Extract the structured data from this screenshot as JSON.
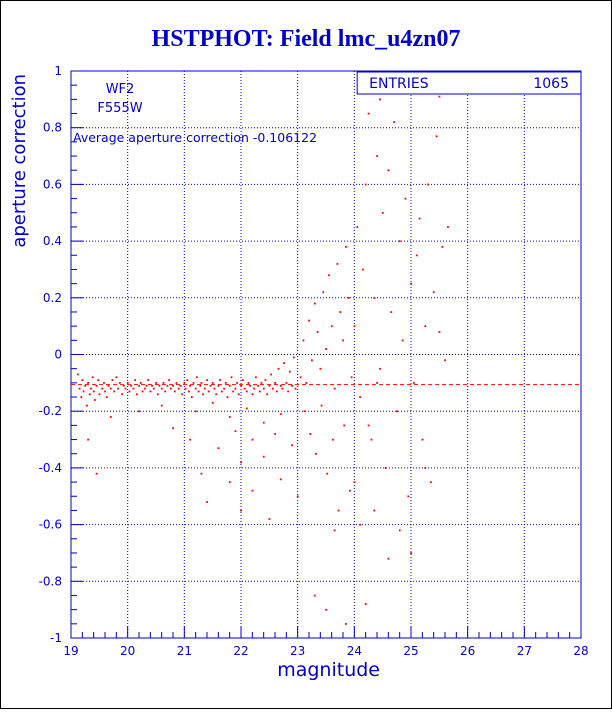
{
  "colors": {
    "axis": "#0000cc",
    "grid": "#0000cc",
    "points": "#ff0000",
    "title": "#0000cc",
    "background": "#ffffff"
  },
  "chart_data": {
    "type": "scatter",
    "title": "HSTPHOT: Field lmc_u4zn07",
    "xlabel": "magnitude",
    "ylabel": "aperture correction",
    "xlim": [
      19,
      28
    ],
    "ylim": [
      -1,
      1
    ],
    "grid": true,
    "x_ticks": [
      19,
      20,
      21,
      22,
      23,
      24,
      25,
      26,
      27,
      28
    ],
    "y_ticks": [
      -1,
      -0.8,
      -0.6,
      -0.4,
      -0.2,
      0,
      0.2,
      0.4,
      0.6,
      0.8,
      1
    ],
    "x_tick_labels": [
      "19",
      "20",
      "21",
      "22",
      "23",
      "24",
      "25",
      "26",
      "27",
      "28"
    ],
    "y_tick_labels": [
      "-1",
      "-0.8",
      "-0.6",
      "-0.4",
      "-0.2",
      "0",
      "0.2",
      "0.4",
      "0.6",
      "0.8",
      "1"
    ],
    "annotations": {
      "camera": "WF2",
      "filter": "F555W",
      "average_label": "Average aperture correction",
      "average_value": "-0.106122"
    },
    "average_line": -0.106122,
    "stats_box": {
      "label": "ENTRIES",
      "value": "1065"
    },
    "series": [
      {
        "values": [
          [
            19.12,
            -0.07
          ],
          [
            19.15,
            -0.12
          ],
          [
            19.18,
            -0.15
          ],
          [
            19.2,
            -0.09
          ],
          [
            19.22,
            -0.13
          ],
          [
            19.25,
            -0.11
          ],
          [
            19.28,
            -0.18
          ],
          [
            19.3,
            -0.1
          ],
          [
            19.33,
            -0.14
          ],
          [
            19.35,
            -0.12
          ],
          [
            19.38,
            -0.08
          ],
          [
            19.4,
            -0.13
          ],
          [
            19.42,
            -0.16
          ],
          [
            19.45,
            -0.11
          ],
          [
            19.48,
            -0.09
          ],
          [
            19.5,
            -0.14
          ],
          [
            19.55,
            -0.12
          ],
          [
            19.58,
            -0.1
          ],
          [
            19.6,
            -0.13
          ],
          [
            19.63,
            -0.15
          ],
          [
            19.66,
            -0.11
          ],
          [
            19.7,
            -0.12
          ],
          [
            19.73,
            -0.09
          ],
          [
            19.76,
            -0.13
          ],
          [
            19.8,
            -0.08
          ],
          [
            19.83,
            -0.12
          ],
          [
            19.86,
            -0.1
          ],
          [
            19.9,
            -0.14
          ],
          [
            19.93,
            -0.11
          ],
          [
            19.96,
            -0.12
          ],
          [
            20.0,
            -0.1
          ],
          [
            20.03,
            -0.13
          ],
          [
            20.06,
            -0.11
          ],
          [
            20.1,
            -0.12
          ],
          [
            20.13,
            -0.09
          ],
          [
            20.16,
            -0.14
          ],
          [
            20.2,
            -0.11
          ],
          [
            20.23,
            -0.1
          ],
          [
            20.26,
            -0.13
          ],
          [
            20.3,
            -0.12
          ],
          [
            20.33,
            -0.11
          ],
          [
            20.36,
            -0.09
          ],
          [
            20.4,
            -0.13
          ],
          [
            20.43,
            -0.11
          ],
          [
            20.46,
            -0.12
          ],
          [
            20.5,
            -0.1
          ],
          [
            20.53,
            -0.14
          ],
          [
            20.56,
            -0.11
          ],
          [
            20.6,
            -0.12
          ],
          [
            20.63,
            -0.1
          ],
          [
            20.66,
            -0.13
          ],
          [
            20.7,
            -0.11
          ],
          [
            20.73,
            -0.09
          ],
          [
            20.76,
            -0.12
          ],
          [
            20.8,
            -0.11
          ],
          [
            20.83,
            -0.13
          ],
          [
            20.86,
            -0.1
          ],
          [
            20.9,
            -0.12
          ],
          [
            20.93,
            -0.11
          ],
          [
            20.96,
            -0.14
          ],
          [
            21.0,
            -0.1
          ],
          [
            21.02,
            -0.12
          ],
          [
            21.05,
            -0.09
          ],
          [
            21.08,
            -0.13
          ],
          [
            21.1,
            -0.11
          ],
          [
            21.13,
            -0.15
          ],
          [
            21.16,
            -0.1
          ],
          [
            21.2,
            -0.12
          ],
          [
            21.22,
            -0.08
          ],
          [
            21.25,
            -0.13
          ],
          [
            21.28,
            -0.11
          ],
          [
            21.3,
            -0.1
          ],
          [
            21.33,
            -0.14
          ],
          [
            21.36,
            -0.12
          ],
          [
            21.4,
            -0.09
          ],
          [
            21.43,
            -0.13
          ],
          [
            21.46,
            -0.11
          ],
          [
            21.5,
            -0.1
          ],
          [
            21.53,
            -0.12
          ],
          [
            21.56,
            -0.14
          ],
          [
            21.6,
            -0.11
          ],
          [
            21.63,
            -0.09
          ],
          [
            21.66,
            -0.13
          ],
          [
            21.7,
            -0.12
          ],
          [
            21.73,
            -0.1
          ],
          [
            21.76,
            -0.15
          ],
          [
            21.8,
            -0.11
          ],
          [
            21.83,
            -0.08
          ],
          [
            21.86,
            -0.13
          ],
          [
            21.9,
            -0.12
          ],
          [
            21.93,
            -0.1
          ],
          [
            21.96,
            -0.14
          ],
          [
            22.0,
            -0.11
          ],
          [
            22.03,
            -0.09
          ],
          [
            22.06,
            -0.12
          ],
          [
            22.1,
            -0.13
          ],
          [
            22.13,
            -0.1
          ],
          [
            22.16,
            -0.11
          ],
          [
            22.2,
            -0.14
          ],
          [
            22.23,
            -0.12
          ],
          [
            22.26,
            -0.08
          ],
          [
            22.3,
            -0.11
          ],
          [
            22.33,
            -0.13
          ],
          [
            22.36,
            -0.1
          ],
          [
            22.4,
            -0.12
          ],
          [
            22.43,
            -0.09
          ],
          [
            22.46,
            -0.14
          ],
          [
            22.5,
            -0.11
          ],
          [
            22.53,
            -0.07
          ],
          [
            22.56,
            -0.12
          ],
          [
            22.6,
            -0.1
          ],
          [
            22.63,
            -0.13
          ],
          [
            22.66,
            -0.05
          ],
          [
            22.7,
            -0.11
          ],
          [
            22.73,
            -0.12
          ],
          [
            22.76,
            -0.03
          ],
          [
            22.8,
            -0.1
          ],
          [
            22.83,
            -0.13
          ],
          [
            22.86,
            -0.06
          ],
          [
            22.9,
            -0.11
          ],
          [
            22.93,
            -0.01
          ],
          [
            22.96,
            -0.12
          ],
          [
            21.2,
            -0.2
          ],
          [
            21.5,
            -0.17
          ],
          [
            21.8,
            -0.22
          ],
          [
            22.1,
            -0.19
          ],
          [
            22.4,
            -0.24
          ],
          [
            22.7,
            -0.21
          ],
          [
            21.9,
            -0.27
          ],
          [
            22.2,
            -0.3
          ],
          [
            22.6,
            -0.28
          ],
          [
            21.6,
            -0.33
          ],
          [
            22.0,
            -0.38
          ],
          [
            22.4,
            -0.36
          ],
          [
            22.9,
            -0.32
          ],
          [
            21.3,
            -0.42
          ],
          [
            21.8,
            -0.45
          ],
          [
            22.2,
            -0.48
          ],
          [
            22.7,
            -0.44
          ],
          [
            21.4,
            -0.52
          ],
          [
            22.0,
            -0.55
          ],
          [
            22.5,
            -0.58
          ],
          [
            23.0,
            -0.5
          ],
          [
            21.1,
            -0.3
          ],
          [
            20.8,
            -0.26
          ],
          [
            19.3,
            -0.3
          ],
          [
            19.45,
            -0.42
          ],
          [
            19.7,
            -0.22
          ],
          [
            20.2,
            -0.2
          ],
          [
            20.6,
            -0.18
          ],
          [
            23.05,
            -0.08
          ],
          [
            23.1,
            0.05
          ],
          [
            23.15,
            -0.1
          ],
          [
            23.2,
            0.12
          ],
          [
            23.25,
            -0.02
          ],
          [
            23.3,
            0.18
          ],
          [
            23.35,
            0.08
          ],
          [
            23.4,
            -0.05
          ],
          [
            23.45,
            0.22
          ],
          [
            23.5,
            0.02
          ],
          [
            23.55,
            0.28
          ],
          [
            23.6,
            0.1
          ],
          [
            23.65,
            -0.12
          ],
          [
            23.7,
            0.32
          ],
          [
            23.75,
            0.15
          ],
          [
            23.8,
            0.05
          ],
          [
            23.85,
            0.38
          ],
          [
            23.9,
            0.2
          ],
          [
            23.95,
            -0.08
          ],
          [
            23.12,
            -0.2
          ],
          [
            23.22,
            -0.28
          ],
          [
            23.32,
            -0.35
          ],
          [
            23.42,
            -0.18
          ],
          [
            23.52,
            -0.42
          ],
          [
            23.62,
            -0.3
          ],
          [
            23.72,
            -0.55
          ],
          [
            23.82,
            -0.25
          ],
          [
            23.92,
            -0.48
          ],
          [
            23.3,
            -0.85
          ],
          [
            23.5,
            -0.9
          ],
          [
            23.65,
            -0.62
          ],
          [
            23.85,
            -0.95
          ],
          [
            24.0,
            0.1
          ],
          [
            24.05,
            0.45
          ],
          [
            24.1,
            -0.15
          ],
          [
            24.15,
            0.3
          ],
          [
            24.2,
            0.6
          ],
          [
            24.25,
            0.85
          ],
          [
            24.3,
            -0.3
          ],
          [
            24.35,
            0.2
          ],
          [
            24.4,
            0.7
          ],
          [
            24.45,
            -0.05
          ],
          [
            24.5,
            0.5
          ],
          [
            24.55,
            -0.4
          ],
          [
            24.6,
            0.65
          ],
          [
            24.65,
            0.15
          ],
          [
            24.7,
            0.82
          ],
          [
            24.75,
            -0.2
          ],
          [
            24.8,
            0.4
          ],
          [
            24.85,
            0.05
          ],
          [
            24.9,
            0.55
          ],
          [
            24.95,
            -0.5
          ],
          [
            25.0,
            0.25
          ],
          [
            25.05,
            -0.1
          ],
          [
            25.1,
            0.35
          ],
          [
            25.15,
            0.48
          ],
          [
            25.2,
            -0.3
          ],
          [
            25.25,
            0.1
          ],
          [
            25.3,
            0.6
          ],
          [
            25.35,
            -0.45
          ],
          [
            25.4,
            0.22
          ],
          [
            25.45,
            0.77
          ],
          [
            25.5,
            0.08
          ],
          [
            25.55,
            0.38
          ],
          [
            25.6,
            -0.02
          ],
          [
            25.65,
            0.45
          ],
          [
            24.2,
            -0.88
          ],
          [
            24.35,
            -0.55
          ],
          [
            24.6,
            -0.72
          ],
          [
            24.8,
            -0.62
          ],
          [
            25.0,
            -0.7
          ],
          [
            25.25,
            -0.4
          ],
          [
            25.5,
            0.91
          ],
          [
            24.1,
            -0.6
          ],
          [
            24.45,
            0.9
          ],
          [
            24.0,
            -0.45
          ],
          [
            24.25,
            -0.25
          ],
          [
            24.4,
            -0.1
          ]
        ]
      }
    ]
  }
}
